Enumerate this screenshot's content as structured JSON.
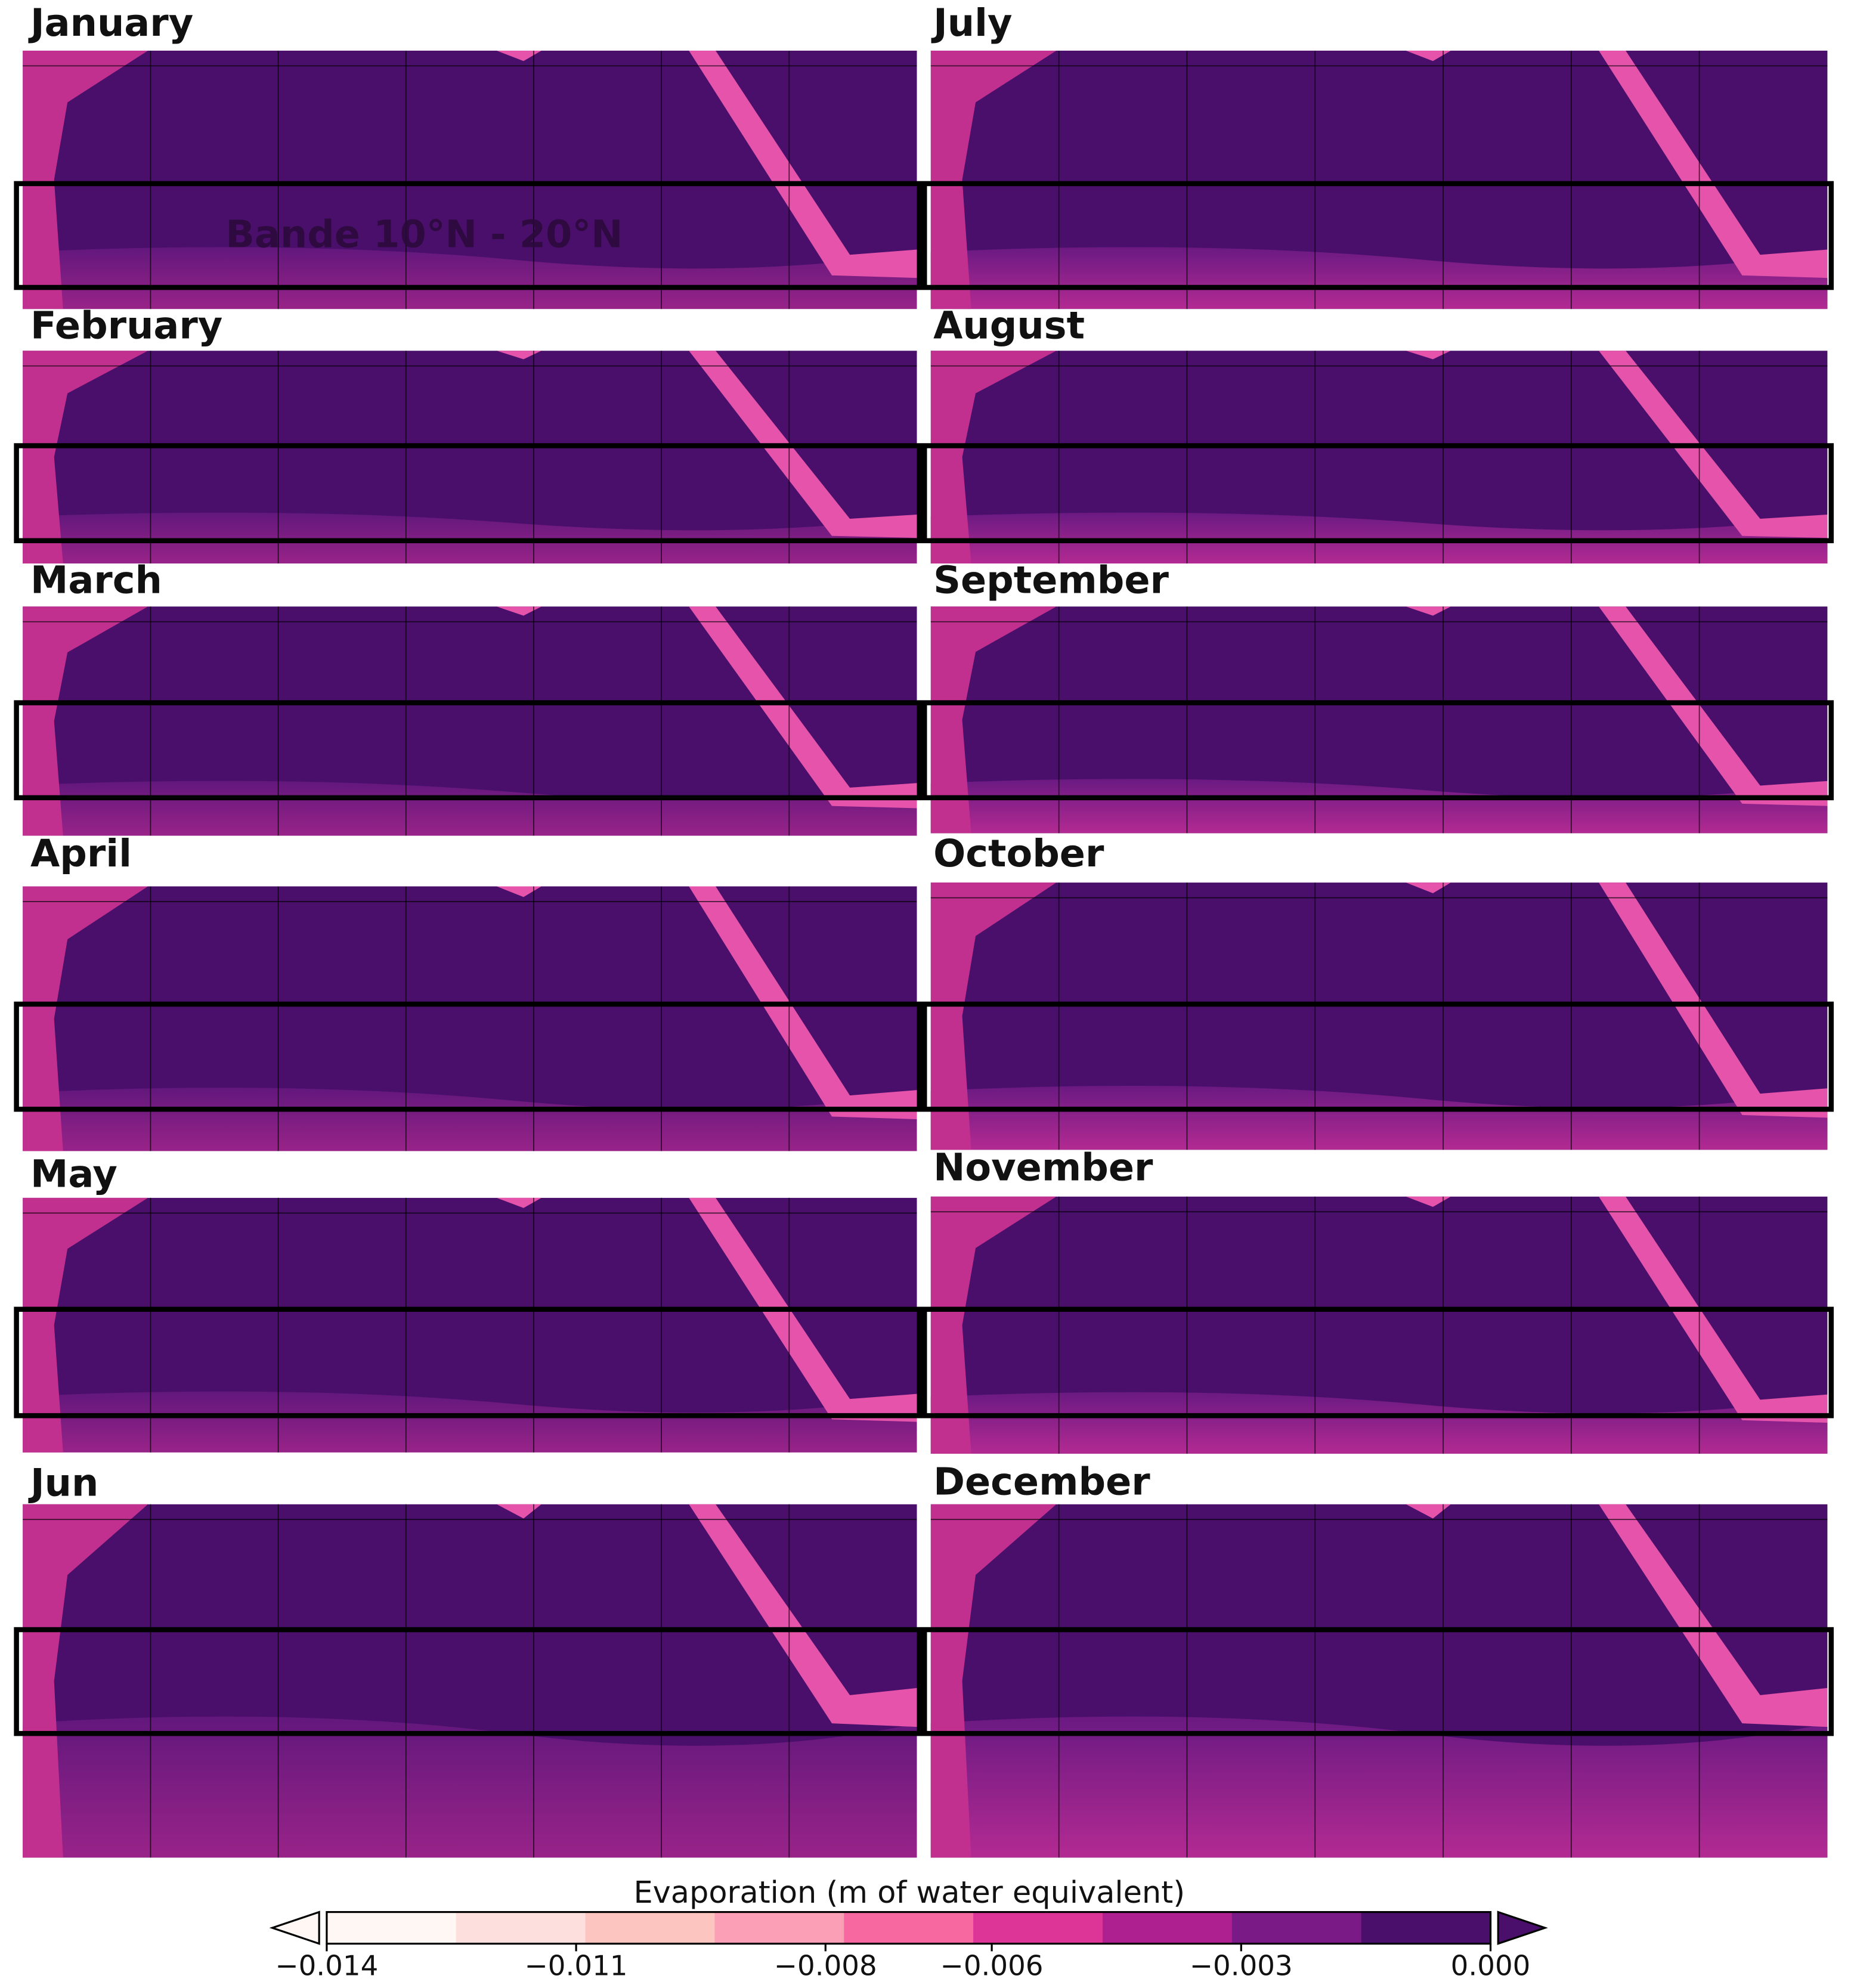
{
  "map_data": {
    "months": [
      "January",
      "February",
      "March",
      "April",
      "May",
      "Jun",
      "July",
      "August",
      "September",
      "October",
      "November",
      "December"
    ],
    "annotation": "Bande 10°N - 20°N",
    "colorbar": {
      "title": "Evaporation (m of water equivalent)",
      "lim": [
        -0.014,
        0.0
      ],
      "ticks": [
        {
          "value": -0.014,
          "label": "−0.014"
        },
        {
          "value": -0.011,
          "label": "−0.011"
        },
        {
          "value": -0.008,
          "label": "−0.008"
        },
        {
          "value": -0.006,
          "label": "−0.006"
        },
        {
          "value": -0.003,
          "label": "−0.003"
        },
        {
          "value": 0.0,
          "label": "0.000"
        }
      ],
      "colors": [
        "#fff7f3",
        "#fde0dd",
        "#fcc5c0",
        "#fa9fb5",
        "#f768a1",
        "#dd3497",
        "#ae1f8f",
        "#7a1a86",
        "#4a0f6b"
      ]
    }
  }
}
